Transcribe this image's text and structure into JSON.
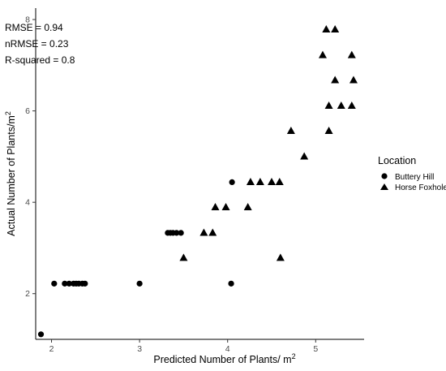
{
  "chart_data": {
    "type": "scatter",
    "xlabel": "Predicted Number of Plants/ m",
    "xlabel_sup": "2",
    "ylabel": "Actual Number of Plants/m",
    "ylabel_sup": "2",
    "xlim": [
      1.82,
      5.55
    ],
    "ylim": [
      1.0,
      8.25
    ],
    "xticks": [
      2,
      3,
      4,
      5
    ],
    "yticks": [
      2,
      4,
      6,
      8
    ],
    "grid": false,
    "legend_position": "right",
    "legend_title": "Location",
    "annotations": [
      "RMSE = 0.94",
      "nRMSE = 0.23",
      "R-squared = 0.8"
    ],
    "series": [
      {
        "name": "Buttery Hill",
        "marker": "circle",
        "color": "#000000",
        "points": [
          [
            1.88,
            1.11
          ],
          [
            2.03,
            2.22
          ],
          [
            2.15,
            2.22
          ],
          [
            2.2,
            2.22
          ],
          [
            2.25,
            2.22
          ],
          [
            2.28,
            2.22
          ],
          [
            2.31,
            2.22
          ],
          [
            2.35,
            2.22
          ],
          [
            2.38,
            2.22
          ],
          [
            3.0,
            2.22
          ],
          [
            3.32,
            3.33
          ],
          [
            3.35,
            3.33
          ],
          [
            3.38,
            3.33
          ],
          [
            3.42,
            3.33
          ],
          [
            3.47,
            3.33
          ],
          [
            4.05,
            4.44
          ],
          [
            4.04,
            2.22
          ]
        ]
      },
      {
        "name": "Horse Foxhole",
        "marker": "triangle",
        "color": "#000000",
        "points": [
          [
            3.5,
            2.78
          ],
          [
            3.73,
            3.33
          ],
          [
            3.83,
            3.33
          ],
          [
            3.86,
            3.89
          ],
          [
            3.98,
            3.89
          ],
          [
            4.23,
            3.89
          ],
          [
            4.26,
            4.44
          ],
          [
            4.37,
            4.44
          ],
          [
            4.5,
            4.44
          ],
          [
            4.59,
            4.44
          ],
          [
            4.6,
            2.78
          ],
          [
            4.72,
            5.56
          ],
          [
            4.87,
            5.0
          ],
          [
            5.08,
            7.22
          ],
          [
            5.12,
            7.78
          ],
          [
            5.22,
            7.78
          ],
          [
            5.15,
            6.11
          ],
          [
            5.15,
            5.56
          ],
          [
            5.22,
            6.67
          ],
          [
            5.29,
            6.11
          ],
          [
            5.41,
            7.22
          ],
          [
            5.43,
            6.67
          ],
          [
            5.41,
            6.11
          ]
        ]
      }
    ]
  }
}
